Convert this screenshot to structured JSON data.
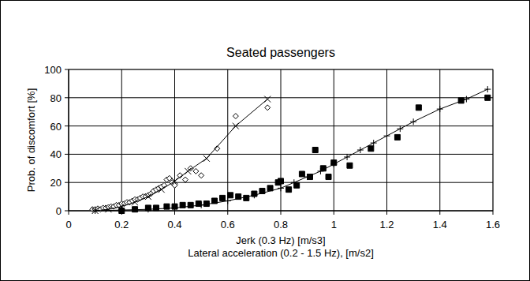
{
  "chart_data": {
    "type": "scatter",
    "title": "Seated passengers",
    "x_label": [
      "Jerk (0.3 Hz)  [m/s3]",
      "Lateral acceleration (0.2 - 1.5 Hz), [m/s2]"
    ],
    "y_label": "Prob. of discomfort [%]",
    "xlim": [
      0,
      1.6
    ],
    "xticks": [
      0,
      0.2,
      0.4,
      0.6,
      0.8,
      1,
      1.2,
      1.4,
      1.6
    ],
    "ylim": [
      0,
      100
    ],
    "yticks": [
      0,
      20,
      40,
      60,
      80,
      100
    ],
    "grid": true,
    "series": [
      {
        "type": "scatter",
        "marker": "diamond",
        "color": "#000000",
        "x": [
          0.09,
          0.1,
          0.11,
          0.12,
          0.13,
          0.14,
          0.15,
          0.16,
          0.17,
          0.18,
          0.19,
          0.2,
          0.21,
          0.22,
          0.23,
          0.24,
          0.25,
          0.26,
          0.27,
          0.28,
          0.29,
          0.3,
          0.31,
          0.32,
          0.33,
          0.34,
          0.35,
          0.36,
          0.37,
          0.38,
          0.39,
          0.4,
          0.42,
          0.44,
          0.46,
          0.48,
          0.5,
          0.56,
          0.63,
          0.75
        ],
        "values": [
          1,
          1,
          1.5,
          1,
          2,
          2,
          2.5,
          3,
          3,
          4,
          4,
          5,
          5,
          6,
          6,
          7,
          8,
          8,
          9,
          10,
          10,
          11,
          12,
          14,
          15,
          16,
          17,
          18,
          22,
          23,
          20,
          18,
          25,
          22,
          30,
          28,
          25,
          44,
          67,
          73
        ]
      },
      {
        "type": "line",
        "marker": "x",
        "line_style": "solid",
        "color": "#000000",
        "x": [
          0.1,
          0.15,
          0.2,
          0.25,
          0.3,
          0.35,
          0.4,
          0.45,
          0.52,
          0.63,
          0.75
        ],
        "values": [
          0,
          1,
          3,
          6,
          10,
          15,
          21,
          28,
          37,
          60,
          79
        ]
      },
      {
        "type": "scatter",
        "marker": "square",
        "color": "#000000",
        "x": [
          0.2,
          0.25,
          0.3,
          0.33,
          0.37,
          0.4,
          0.43,
          0.46,
          0.49,
          0.52,
          0.55,
          0.58,
          0.61,
          0.64,
          0.67,
          0.7,
          0.73,
          0.76,
          0.79,
          0.8,
          0.83,
          0.86,
          0.88,
          0.91,
          0.93,
          0.96,
          0.98,
          1.0,
          1.06,
          1.14,
          1.24,
          1.32,
          1.48,
          1.58
        ],
        "values": [
          0,
          1,
          2,
          2,
          3,
          3,
          4,
          4,
          5,
          5,
          7,
          9,
          11,
          10,
          9,
          12,
          14,
          16,
          20,
          21,
          15,
          18,
          26,
          24,
          43,
          30,
          24,
          34,
          32,
          44,
          52,
          73,
          78,
          80
        ]
      },
      {
        "type": "line",
        "marker": "plus",
        "line_style": "solid",
        "color": "#000000",
        "x": [
          0.1,
          0.2,
          0.3,
          0.4,
          0.5,
          0.6,
          0.7,
          0.8,
          0.85,
          0.9,
          0.95,
          1.0,
          1.05,
          1.1,
          1.15,
          1.2,
          1.25,
          1.3,
          1.4,
          1.5,
          1.58
        ],
        "values": [
          0,
          0.5,
          1,
          2,
          4,
          7,
          11,
          16,
          20,
          24,
          28,
          33,
          38,
          43,
          48,
          53,
          58,
          63,
          72,
          79,
          86
        ]
      }
    ]
  }
}
